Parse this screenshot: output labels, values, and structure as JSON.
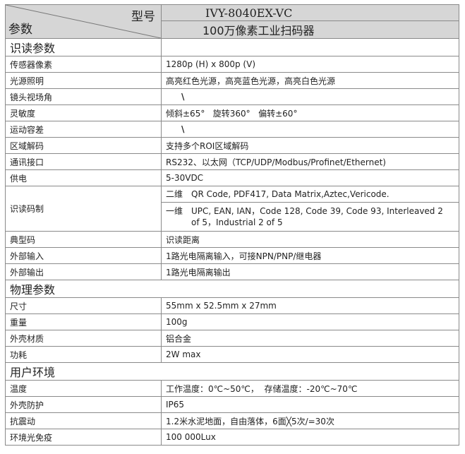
{
  "header": {
    "model_label": "型号",
    "param_label": "参数",
    "model": "IVY-8040EX-VC",
    "product": "100万像素工业扫码器"
  },
  "sections": [
    {
      "title": "识读参数",
      "rows": [
        {
          "k": "传感器像素",
          "v": "1280p (H) x 800p (V)"
        },
        {
          "k": "光源照明",
          "v": "高亮红色光源，高亮蓝色光源，高亮白色光源"
        },
        {
          "k": "镜头视场角",
          "v": "\\"
        },
        {
          "k": "灵敏度",
          "v": "倾斜±65°   旋转360°   偏转±60°"
        },
        {
          "k": "运动容差",
          "v": "\\"
        },
        {
          "k": "区域解码",
          "v": "支持多个ROI区域解码"
        },
        {
          "k": "通讯接口",
          "v": "RS232、以太网（TCP/UDP/Modbus/Profinet/Ethernet)"
        },
        {
          "k": "供电",
          "v": "5-30VDC"
        }
      ]
    },
    {
      "codes": {
        "k": "识读码制",
        "d2_label": "二维",
        "d2": "QR Code, PDF417, Data Matrix,Aztec,Vericode.",
        "d1_label": "一维",
        "d1": "UPC, EAN, IAN，Code 128, Code 39, Code 93, Interleaved 2 of 5，Industrial 2 of 5"
      },
      "rows": [
        {
          "k": "典型码",
          "v": "识读距离"
        },
        {
          "k": "外部输入",
          "v": "1路光电隔离输入，可接NPN/PNP/继电器"
        },
        {
          "k": "外部输出",
          "v": "1路光电隔离输出"
        }
      ]
    },
    {
      "title": "物理参数",
      "rows": [
        {
          "k": "尺寸",
          "v": "55mm x 52.5mm x 27mm"
        },
        {
          "k": "重量",
          "v": "100g"
        },
        {
          "k": "外壳材质",
          "v": "铝合金"
        },
        {
          "k": "功耗",
          "v": "2W max"
        }
      ]
    },
    {
      "title": "用户环境",
      "rows": [
        {
          "k": "温度",
          "v": "工作温度：0℃~50℃，  存储温度：-20℃~70℃"
        },
        {
          "k": "外壳防护",
          "v": "IP65"
        },
        {
          "k": "抗震动",
          "v": "1.2米水泥地面，自由落体，6面╳5次/=30次"
        },
        {
          "k": "环境光免疫",
          "v": "100 000Lux"
        }
      ]
    }
  ]
}
